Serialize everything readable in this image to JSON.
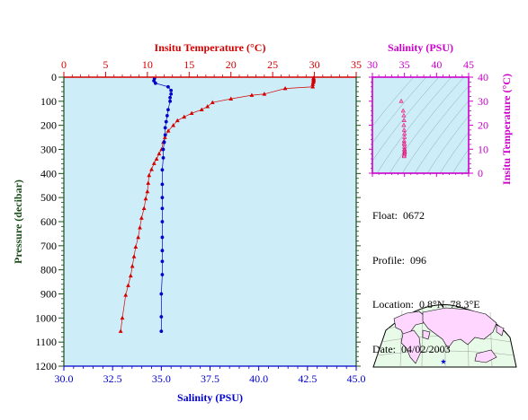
{
  "colors": {
    "temperature": "#d40000",
    "salinity": "#0000cc",
    "pressure_axis": "#1b4d1b",
    "magenta": "#cc00cc",
    "plot_bg": "#cdeef8",
    "land": "#ffd6ff",
    "ocean": "#e8fbe8"
  },
  "icons": {
    "float_marker": "star-icon"
  },
  "tiny_footer": "",
  "chart_data": [
    {
      "type": "line",
      "name": "main-profile",
      "ylabel": "Pressure (decibar)",
      "ylim": [
        1200,
        0
      ],
      "yticks": [
        0,
        100,
        200,
        300,
        400,
        500,
        600,
        700,
        800,
        900,
        1000,
        1100,
        1200
      ],
      "top_axis": {
        "label": "Insitu Temperature (°C)",
        "lim": [
          0,
          35
        ],
        "ticks": [
          0,
          5,
          10,
          15,
          20,
          25,
          30,
          35
        ]
      },
      "bottom_axis": {
        "label": "Salinity (PSU)",
        "lim": [
          30.0,
          45.0
        ],
        "ticks": [
          "30.0",
          "32.5",
          "35.0",
          "37.5",
          "40.0",
          "42.5",
          "45.0"
        ]
      },
      "series": [
        {
          "name": "Insitu Temperature",
          "axis": "top",
          "marker": "triangle",
          "points": [
            [
              29.9,
              3
            ],
            [
              29.9,
              6
            ],
            [
              29.9,
              10
            ],
            [
              29.9,
              13
            ],
            [
              29.9,
              17
            ],
            [
              29.85,
              22
            ],
            [
              29.8,
              30
            ],
            [
              29.8,
              40
            ],
            [
              26.5,
              47
            ],
            [
              24.0,
              70
            ],
            [
              22.5,
              75
            ],
            [
              20.0,
              90
            ],
            [
              17.8,
              105
            ],
            [
              17.2,
              122
            ],
            [
              16.5,
              135
            ],
            [
              15.3,
              150
            ],
            [
              14.4,
              165
            ],
            [
              13.6,
              180
            ],
            [
              13.1,
              200
            ],
            [
              12.5,
              223
            ],
            [
              12.1,
              250
            ],
            [
              11.9,
              270
            ],
            [
              11.7,
              300
            ],
            [
              11.4,
              318
            ],
            [
              11.1,
              340
            ],
            [
              10.8,
              358
            ],
            [
              10.5,
              383
            ],
            [
              10.2,
              408
            ],
            [
              10.1,
              440
            ],
            [
              10.0,
              475
            ],
            [
              9.8,
              505
            ],
            [
              9.6,
              545
            ],
            [
              9.3,
              585
            ],
            [
              9.1,
              625
            ],
            [
              8.9,
              665
            ],
            [
              8.6,
              705
            ],
            [
              8.4,
              745
            ],
            [
              8.2,
              785
            ],
            [
              8.0,
              825
            ],
            [
              7.7,
              865
            ],
            [
              7.4,
              905
            ],
            [
              7.0,
              1000
            ],
            [
              6.8,
              1055
            ]
          ]
        },
        {
          "name": "Salinity",
          "axis": "bottom",
          "marker": "circle",
          "points": [
            [
              34.65,
              5
            ],
            [
              34.62,
              15
            ],
            [
              34.7,
              25
            ],
            [
              35.35,
              40
            ],
            [
              35.5,
              55
            ],
            [
              35.5,
              70
            ],
            [
              35.45,
              85
            ],
            [
              35.45,
              100
            ],
            [
              35.35,
              135
            ],
            [
              35.3,
              160
            ],
            [
              35.25,
              185
            ],
            [
              35.2,
              210
            ],
            [
              35.2,
              240
            ],
            [
              35.15,
              270
            ],
            [
              35.1,
              300
            ],
            [
              35.1,
              335
            ],
            [
              35.05,
              385
            ],
            [
              35.05,
              445
            ],
            [
              35.05,
              500
            ],
            [
              35.05,
              545
            ],
            [
              35.05,
              600
            ],
            [
              35.05,
              665
            ],
            [
              35.05,
              720
            ],
            [
              35.05,
              765
            ],
            [
              35.05,
              820
            ],
            [
              35.0,
              900
            ],
            [
              35.0,
              995
            ],
            [
              35.0,
              1055
            ]
          ]
        }
      ]
    },
    {
      "type": "scatter",
      "name": "ts-diagram",
      "xlabel": "Salinity (PSU)",
      "ylabel": "Insitu Temperature (°C)",
      "xlim": [
        30,
        45
      ],
      "ylim": [
        0,
        40
      ],
      "xticks": [
        30,
        35,
        40,
        45
      ],
      "yticks": [
        0,
        10,
        20,
        30,
        40
      ],
      "points": [
        [
          34.5,
          30.0
        ],
        [
          34.8,
          26.0
        ],
        [
          34.9,
          24.0
        ],
        [
          34.95,
          22.0
        ],
        [
          34.9,
          20.0
        ],
        [
          34.95,
          18.0
        ],
        [
          35.0,
          16.5
        ],
        [
          35.0,
          15.0
        ],
        [
          34.95,
          13.5
        ],
        [
          34.95,
          12.5
        ],
        [
          35.0,
          12.0
        ],
        [
          35.0,
          11.0
        ],
        [
          35.0,
          10.0
        ],
        [
          35.0,
          9.5
        ],
        [
          35.05,
          9.0
        ],
        [
          35.0,
          8.5
        ],
        [
          35.0,
          8.0
        ],
        [
          34.95,
          7.5
        ],
        [
          34.95,
          7.0
        ]
      ]
    }
  ],
  "float_info": {
    "float": "Float:  0672",
    "profile": "Profile:  096",
    "location": "Location:  0.8°N  78.3°E",
    "date": "Date:  04/02/2003"
  }
}
